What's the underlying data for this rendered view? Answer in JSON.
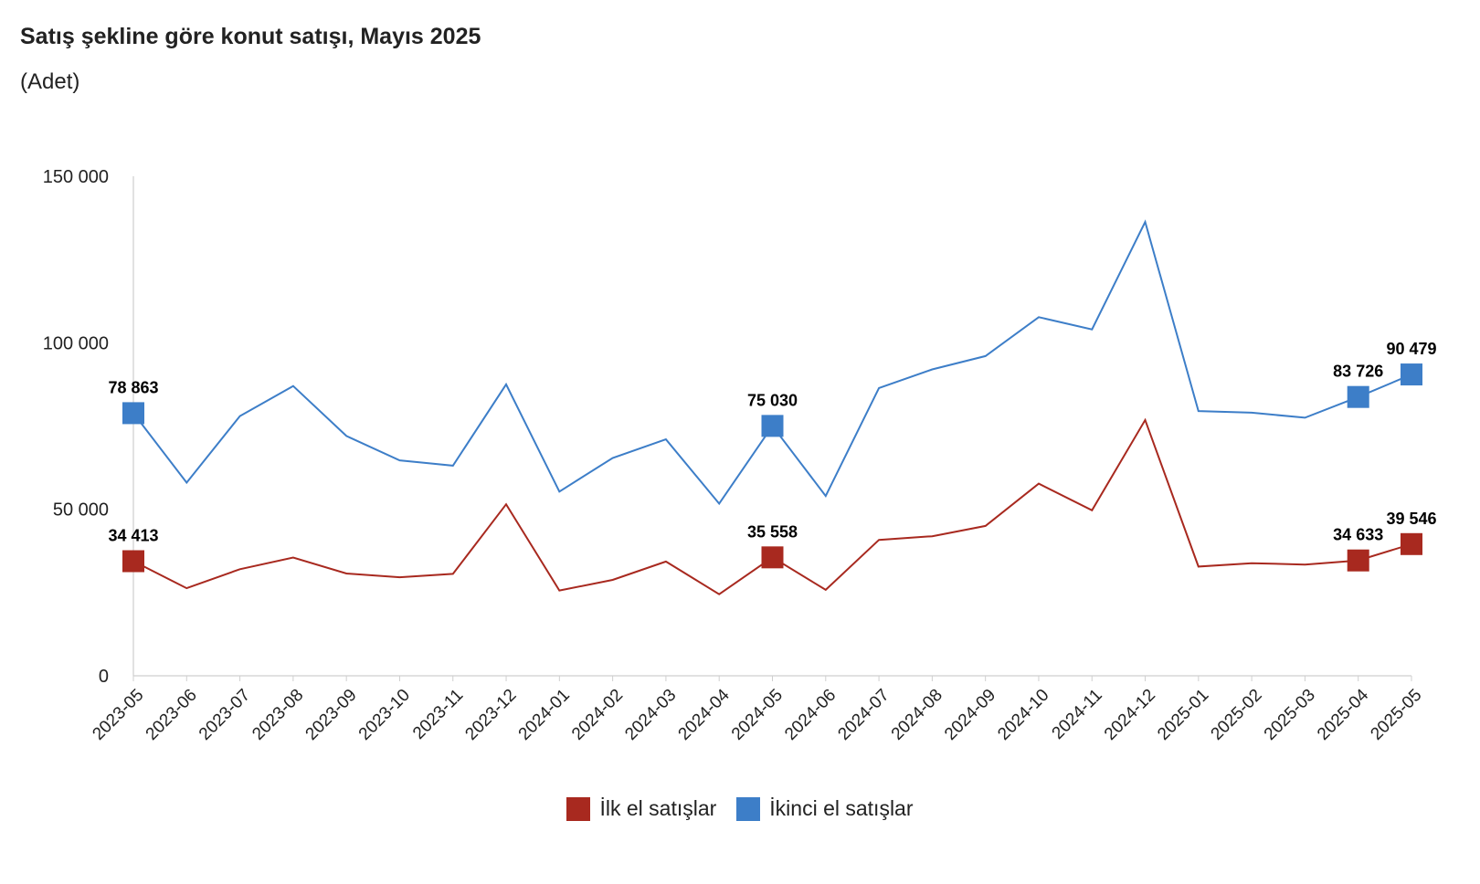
{
  "title": "Satış şekline göre konut satışı, Mayıs 2025",
  "subtitle": "(Adet)",
  "chart_data": {
    "type": "line",
    "title": "Satış şekline göre konut satışı, Mayıs 2025",
    "subtitle": "(Adet)",
    "ylim": [
      0,
      150000
    ],
    "yticks": [
      0,
      50000,
      100000,
      150000
    ],
    "ytick_labels": [
      "0",
      "50 000",
      "100 000",
      "150 000"
    ],
    "grid": false,
    "legend_position": "bottom",
    "categories": [
      "2023-05",
      "2023-06",
      "2023-07",
      "2023-08",
      "2023-09",
      "2023-10",
      "2023-11",
      "2023-12",
      "2024-01",
      "2024-02",
      "2024-03",
      "2024-04",
      "2024-05",
      "2024-06",
      "2024-07",
      "2024-08",
      "2024-09",
      "2024-10",
      "2024-11",
      "2024-12",
      "2025-01",
      "2025-02",
      "2025-03",
      "2025-04",
      "2025-05"
    ],
    "series": [
      {
        "name": "İlk el satışlar",
        "color": "#a8291f",
        "values": [
          34413,
          26300,
          32000,
          35500,
          30700,
          29600,
          30600,
          51500,
          25600,
          28800,
          34300,
          24500,
          35558,
          25800,
          40800,
          41900,
          45000,
          57700,
          49700,
          76800,
          32800,
          33800,
          33400,
          34633,
          39546
        ],
        "labels": {
          "0": "34 413",
          "12": "35 558",
          "23": "34 633",
          "24": "39 546"
        }
      },
      {
        "name": "İkinci el satışlar",
        "color": "#3d7ec8",
        "values": [
          78863,
          58000,
          78000,
          87000,
          72000,
          64700,
          63100,
          87500,
          55300,
          65400,
          71000,
          51700,
          75030,
          54000,
          86400,
          92000,
          96000,
          107700,
          104000,
          136300,
          79500,
          79000,
          77500,
          83726,
          90479
        ],
        "labels": {
          "0": "78 863",
          "12": "75 030",
          "23": "83 726",
          "24": "90 479"
        }
      }
    ]
  }
}
